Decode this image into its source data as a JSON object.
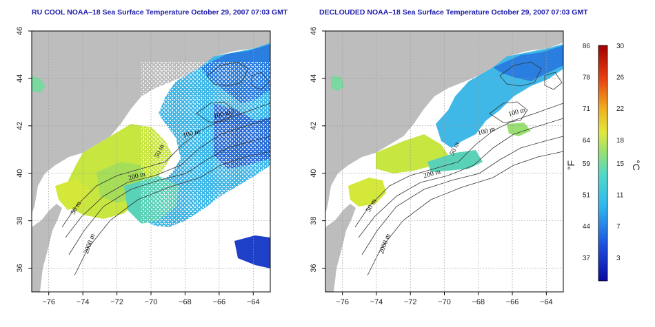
{
  "titles": {
    "left": "RU COOL NOAA–18 Sea Surface Temperature October 29, 2007 07:03 GMT",
    "right": "DECLOUDED NOAA–18 Sea Surface Temperature October 29, 2007 07:03 GMT"
  },
  "axes": {
    "lon_ticks": [
      -76,
      -74,
      -72,
      -70,
      -68,
      -66,
      -64
    ],
    "lon_tick_labels": [
      "−76",
      "−74",
      "−72",
      "−70",
      "−68",
      "−66",
      "−64"
    ],
    "lat_ticks": [
      36,
      38,
      40,
      42,
      44,
      46
    ],
    "lat_tick_labels": [
      "36",
      "38",
      "40",
      "42",
      "44",
      "46"
    ],
    "lon_range": [
      -77,
      -63
    ],
    "lat_range": [
      35,
      46
    ],
    "grid": "dashed"
  },
  "contour_labels": {
    "left": [
      {
        "text": "100 m",
        "lon": -65.8,
        "lat": 42.4
      },
      {
        "text": "100 m",
        "lon": -67.6,
        "lat": 41.6
      },
      {
        "text": "50 m",
        "lon": -69.4,
        "lat": 40.9
      },
      {
        "text": "200 m",
        "lon": -70.8,
        "lat": 39.8
      },
      {
        "text": "50 m",
        "lon": -74.3,
        "lat": 38.5
      },
      {
        "text": "2000 m",
        "lon": -73.5,
        "lat": 37.0
      }
    ],
    "right": [
      {
        "text": "100 m",
        "lon": -65.7,
        "lat": 42.5
      },
      {
        "text": "100 m",
        "lon": -67.5,
        "lat": 41.7
      },
      {
        "text": "50 m",
        "lon": -69.3,
        "lat": 41.0
      },
      {
        "text": "200 m",
        "lon": -70.7,
        "lat": 39.9
      },
      {
        "text": "50 m",
        "lon": -74.2,
        "lat": 38.6
      },
      {
        "text": "2000 m",
        "lon": -73.4,
        "lat": 37.0
      }
    ]
  },
  "colorbar": {
    "fahrenheit_labels": [
      "86",
      "78",
      "71",
      "64",
      "59",
      "51",
      "44",
      "37"
    ],
    "celsius_labels": [
      "30",
      "26",
      "22",
      "18",
      "15",
      "11",
      "7",
      "3"
    ],
    "celsius_values": [
      30,
      26,
      22,
      18,
      15,
      11,
      7,
      3
    ],
    "celsius_range": [
      0,
      30
    ],
    "unit_f": "°F",
    "unit_c": "°C"
  },
  "colors": {
    "land": "#bdbdbd",
    "title": "#1a1aa8",
    "cold": "#1e50d8",
    "cool": "#3fb8e8",
    "mild": "#5ad2b8",
    "warm": "#c8e640",
    "hot": "#e8d030"
  }
}
